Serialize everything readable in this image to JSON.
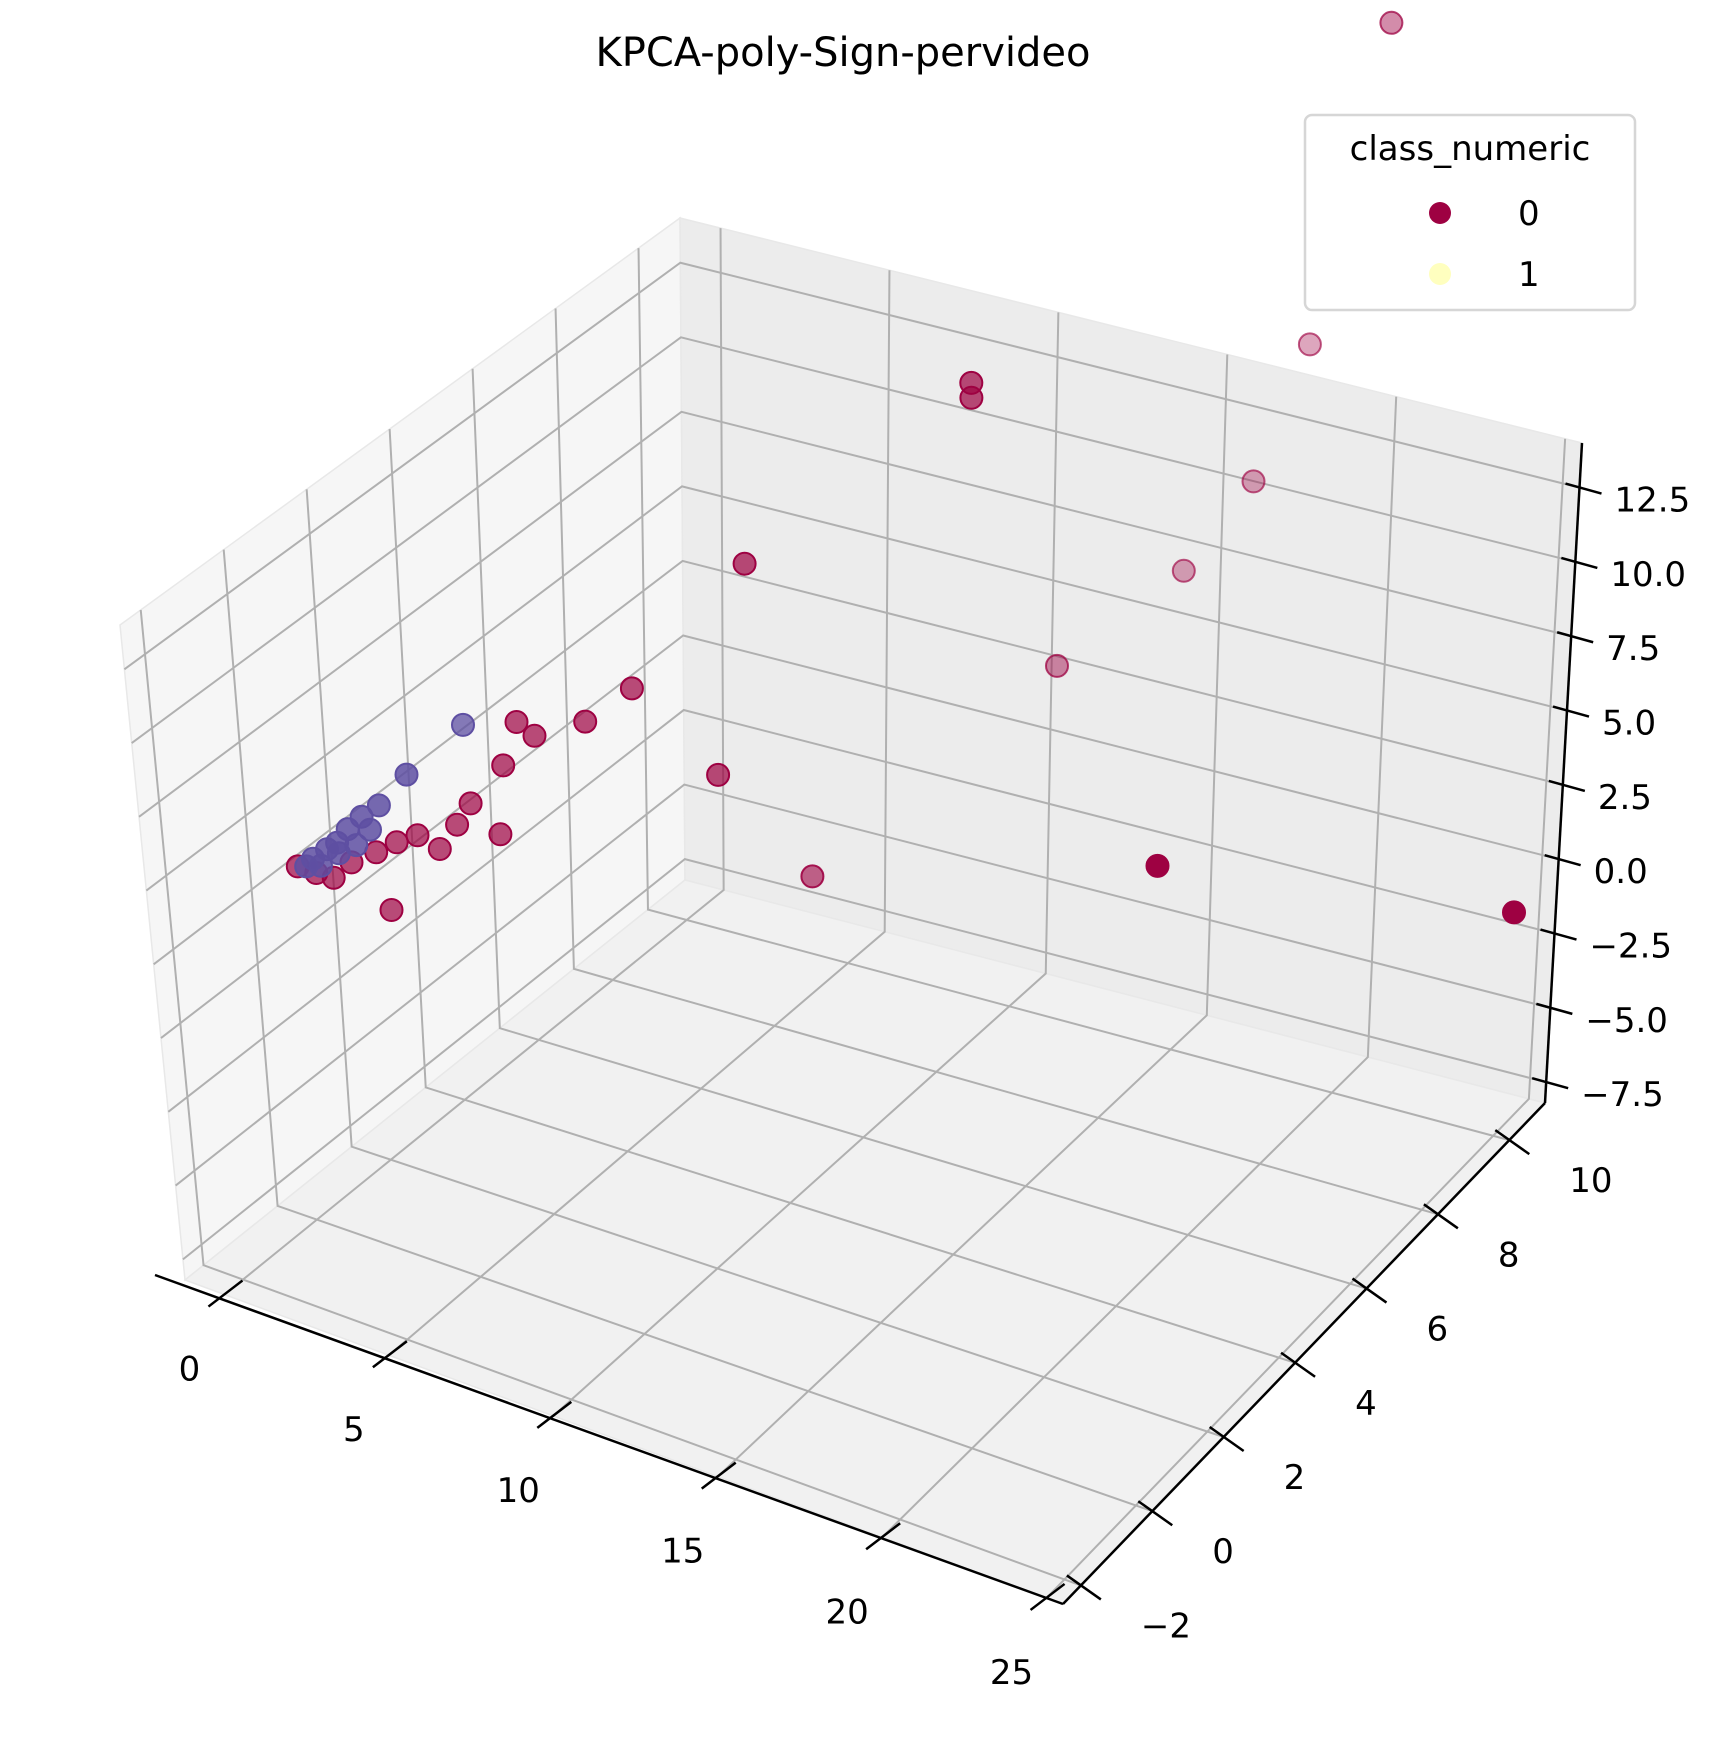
{
  "chart_data": {
    "type": "scatter",
    "projection": "3d",
    "title": "KPCA-poly-Sign-pervideo",
    "xlabel": "",
    "ylabel": "",
    "zlabel": "",
    "x_ticks": [
      "0",
      "5",
      "10",
      "15",
      "20",
      "25"
    ],
    "y_ticks": [
      "−2",
      "0",
      "2",
      "4",
      "6",
      "8",
      "10"
    ],
    "z_ticks": [
      "−7.5",
      "−5.0",
      "−2.5",
      "0.0",
      "2.5",
      "5.0",
      "7.5",
      "10.0",
      "12.5"
    ],
    "grid": true,
    "legend": {
      "title": "class_numeric",
      "placement": "top-right",
      "entries": [
        {
          "label": "0",
          "color": "#9e0142"
        },
        {
          "label": "1",
          "color": "#ffffbf"
        }
      ]
    },
    "series": [
      {
        "name": "0",
        "color": "#9e0142",
        "points": [
          {
            "x": 24.5,
            "y": 10.2,
            "z": 2.0,
            "alpha": 1.0
          },
          {
            "x": 16.5,
            "y": 8.0,
            "z": 2.5,
            "alpha": 1.0
          },
          {
            "x": 10.0,
            "y": 4.8,
            "z": 2.7,
            "alpha": 0.6
          },
          {
            "x": 7.5,
            "y": 4.6,
            "z": 5.3,
            "alpha": 0.7
          },
          {
            "x": 13.5,
            "y": 8.0,
            "z": 8.0,
            "alpha": 0.45
          },
          {
            "x": 15.0,
            "y": 9.8,
            "z": 10.0,
            "alpha": 0.35
          },
          {
            "x": 15.5,
            "y": 11.0,
            "z": 12.0,
            "alpha": 0.35
          },
          {
            "x": 16.0,
            "y": 11.8,
            "z": 16.0,
            "alpha": 0.35
          },
          {
            "x": 17.0,
            "y": 12.5,
            "z": 26.5,
            "alpha": 0.45
          },
          {
            "x": 11.0,
            "y": 8.0,
            "z": 16.0,
            "alpha": 0.7
          },
          {
            "x": 11.0,
            "y": 8.0,
            "z": 16.5,
            "alpha": 0.7
          },
          {
            "x": 7.0,
            "y": 5.8,
            "z": 11.0,
            "alpha": 0.7
          },
          {
            "x": 5.5,
            "y": 4.2,
            "z": 7.8,
            "alpha": 0.7
          },
          {
            "x": 4.8,
            "y": 3.6,
            "z": 7.0,
            "alpha": 0.7
          },
          {
            "x": 4.0,
            "y": 3.0,
            "z": 6.8,
            "alpha": 0.7
          },
          {
            "x": 3.6,
            "y": 2.9,
            "z": 7.2,
            "alpha": 0.7
          },
          {
            "x": 3.5,
            "y": 2.6,
            "z": 6.0,
            "alpha": 0.7
          },
          {
            "x": 3.8,
            "y": 2.2,
            "z": 4.2,
            "alpha": 0.7
          },
          {
            "x": 3.2,
            "y": 2.0,
            "z": 5.2,
            "alpha": 0.7
          },
          {
            "x": 3.0,
            "y": 1.8,
            "z": 4.6,
            "alpha": 0.7
          },
          {
            "x": 2.8,
            "y": 1.5,
            "z": 4.0,
            "alpha": 0.7
          },
          {
            "x": 2.4,
            "y": 1.3,
            "z": 4.5,
            "alpha": 0.7
          },
          {
            "x": 2.0,
            "y": 1.1,
            "z": 4.3,
            "alpha": 0.7
          },
          {
            "x": 1.6,
            "y": 0.9,
            "z": 4.0,
            "alpha": 0.7
          },
          {
            "x": 1.2,
            "y": 0.6,
            "z": 3.8,
            "alpha": 0.7
          },
          {
            "x": 1.0,
            "y": 0.3,
            "z": 3.5,
            "alpha": 0.7
          },
          {
            "x": 2.2,
            "y": 0.7,
            "z": 2.5,
            "alpha": 0.7
          },
          {
            "x": 0.6,
            "y": 0.2,
            "z": 3.6,
            "alpha": 0.7
          },
          {
            "x": 0.3,
            "y": 0.0,
            "z": 3.9,
            "alpha": 0.7
          }
        ]
      },
      {
        "name": "",
        "color": "#5e4fa2",
        "points": [
          {
            "x": 2.6,
            "y": 2.4,
            "z": 7.2,
            "alpha": 0.75
          },
          {
            "x": 1.8,
            "y": 1.6,
            "z": 6.0,
            "alpha": 0.85
          },
          {
            "x": 1.4,
            "y": 1.2,
            "z": 5.2,
            "alpha": 0.85
          },
          {
            "x": 1.1,
            "y": 1.0,
            "z": 4.9,
            "alpha": 0.85
          },
          {
            "x": 0.9,
            "y": 0.8,
            "z": 4.6,
            "alpha": 0.85
          },
          {
            "x": 0.8,
            "y": 0.6,
            "z": 4.3,
            "alpha": 0.85
          },
          {
            "x": 0.6,
            "y": 0.5,
            "z": 4.1,
            "alpha": 0.85
          },
          {
            "x": 0.4,
            "y": 0.3,
            "z": 3.9,
            "alpha": 0.85
          },
          {
            "x": 0.3,
            "y": 0.2,
            "z": 3.7,
            "alpha": 0.85
          },
          {
            "x": 0.5,
            "y": 0.4,
            "z": 3.6,
            "alpha": 0.85
          },
          {
            "x": 0.7,
            "y": 0.7,
            "z": 3.8,
            "alpha": 0.85
          },
          {
            "x": 1.0,
            "y": 0.9,
            "z": 4.0,
            "alpha": 0.85
          },
          {
            "x": 1.2,
            "y": 1.1,
            "z": 4.4,
            "alpha": 0.85
          }
        ]
      }
    ]
  }
}
